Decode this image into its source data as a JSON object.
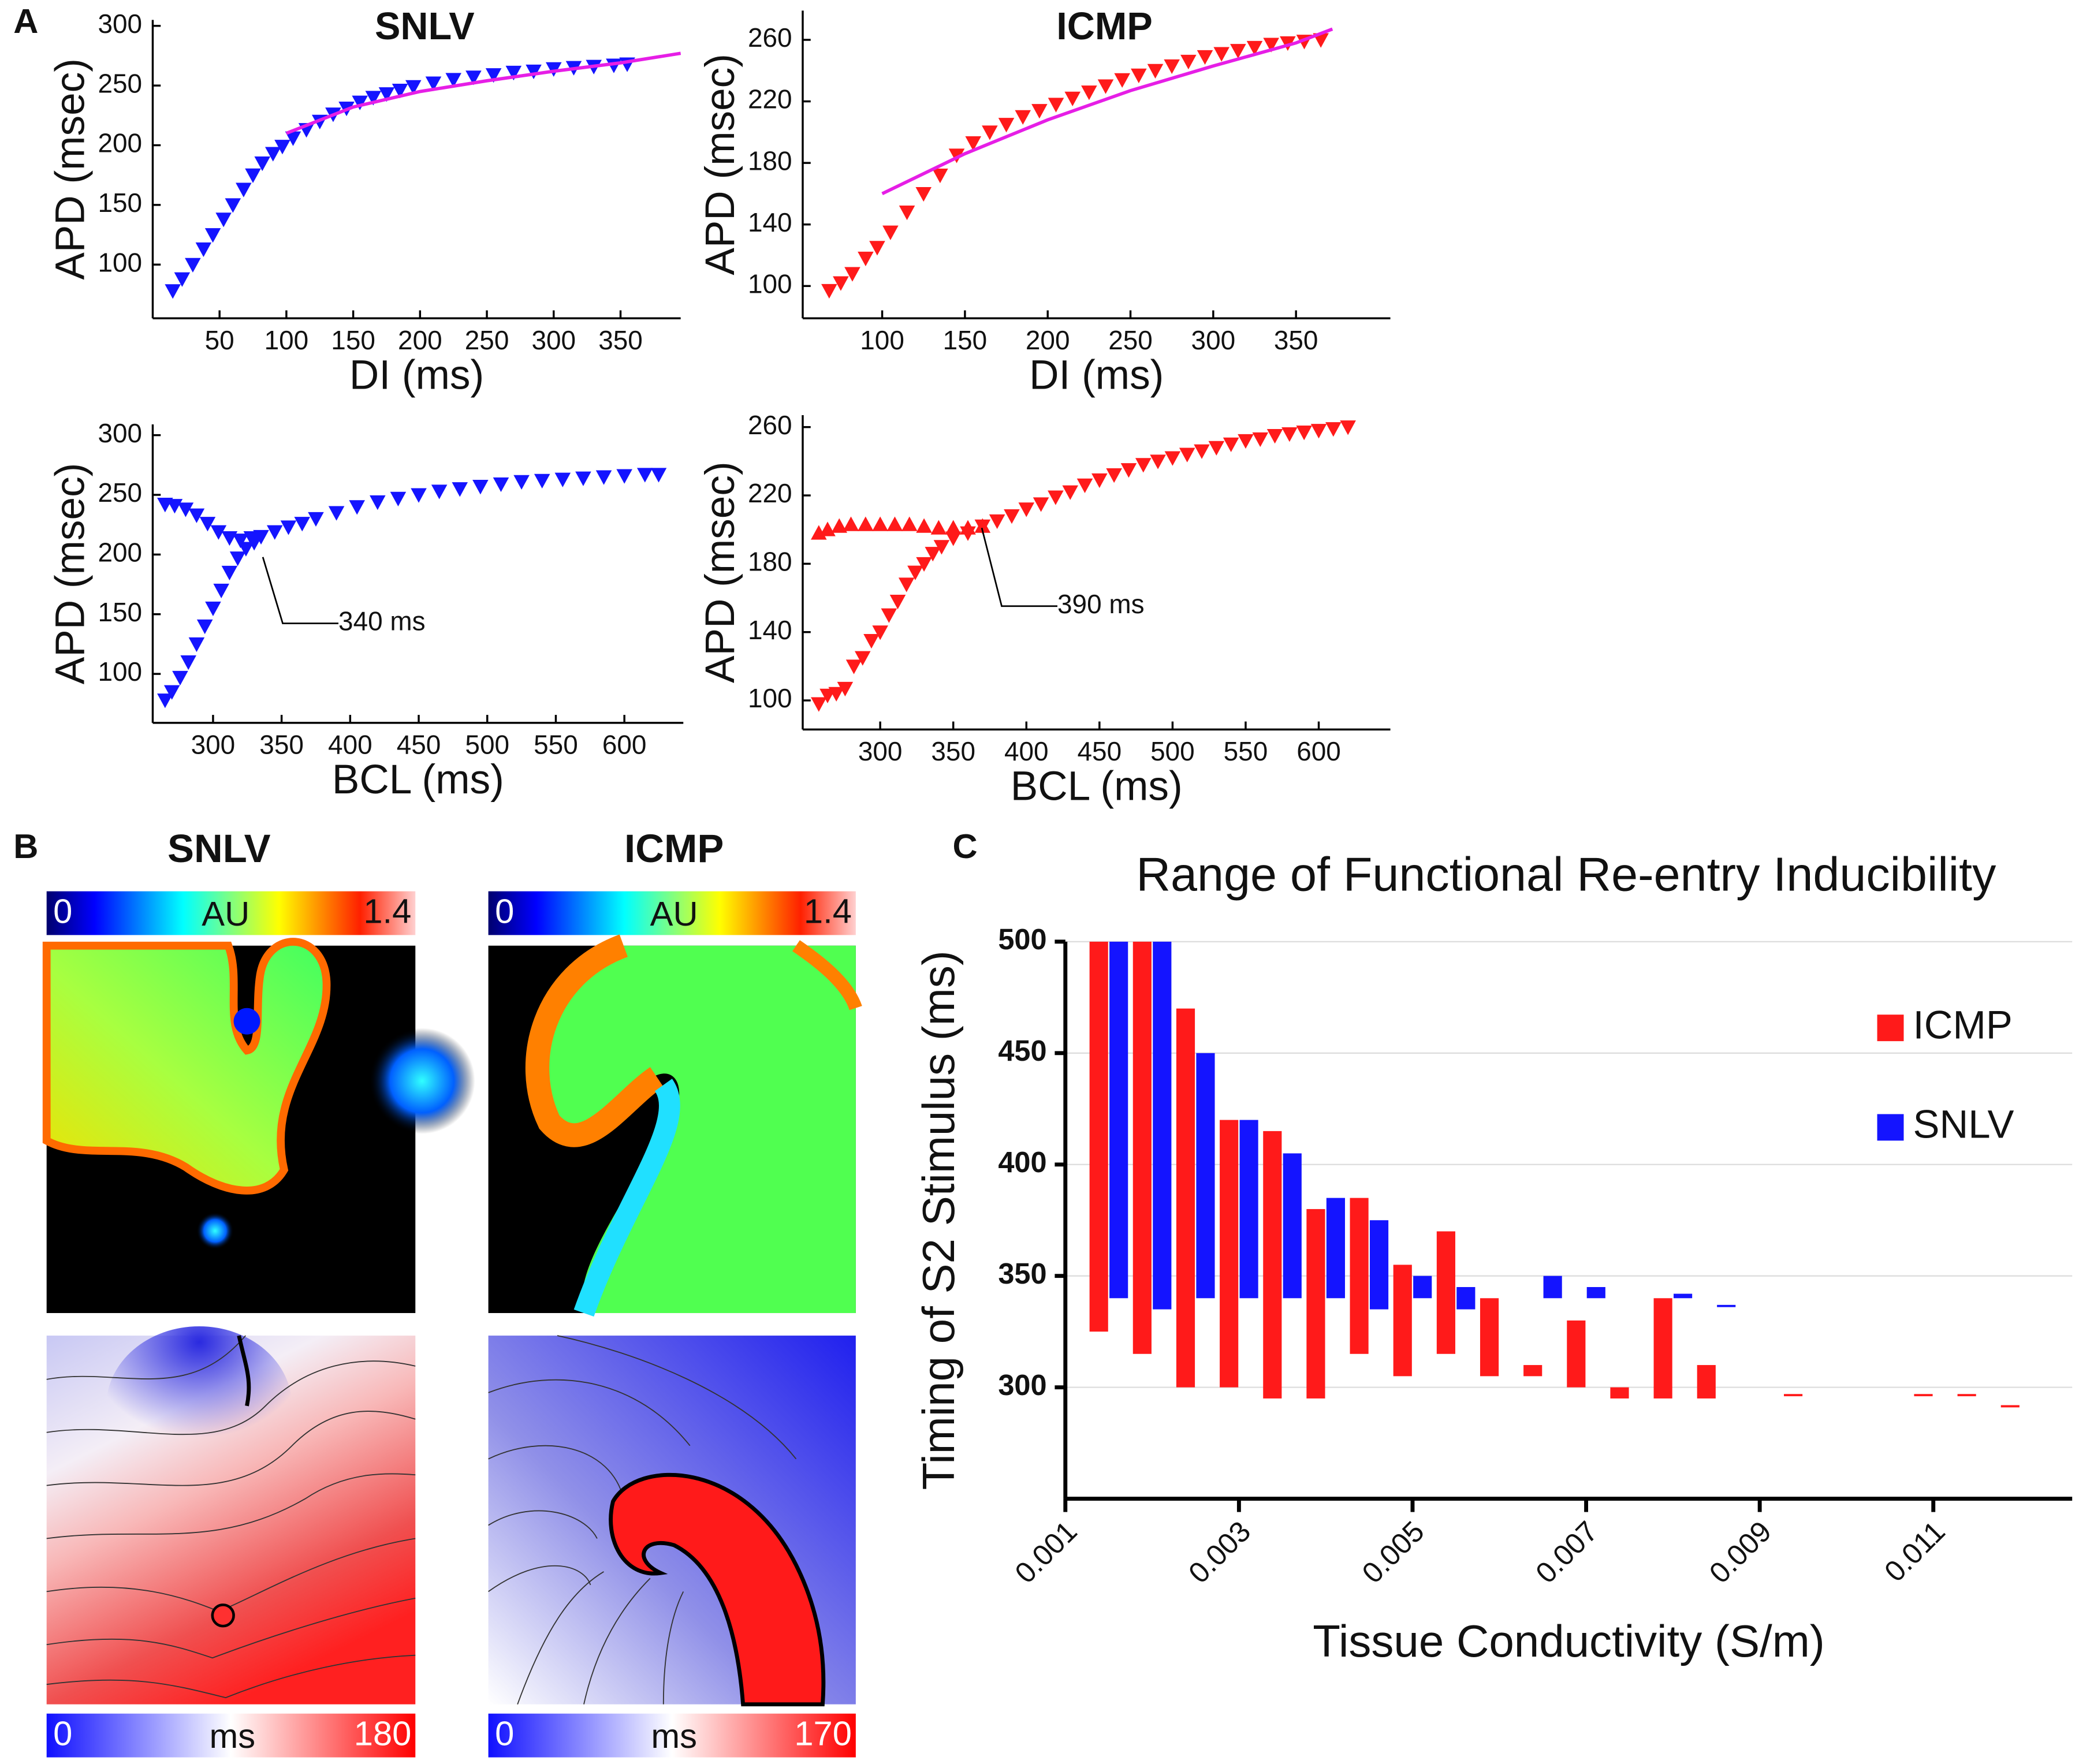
{
  "panel_labels": [
    "A",
    "B",
    "C"
  ],
  "chart_data": [
    {
      "type": "scatter",
      "title": "SNLV",
      "xlabel": "DI (ms)",
      "ylabel": "APD (msec)",
      "xlim": [
        0,
        395
      ],
      "ylim": [
        55,
        305
      ],
      "xticks": [
        50,
        100,
        150,
        200,
        250,
        300,
        350
      ],
      "yticks": [
        100,
        150,
        200,
        250,
        300
      ],
      "series": [
        {
          "color": "#1414ff",
          "marker": "v",
          "x": [
            15,
            22,
            30,
            38,
            45,
            53,
            60,
            68,
            75,
            82,
            90,
            97,
            105,
            115,
            125,
            135,
            145,
            155,
            165,
            175,
            185,
            195,
            210,
            225,
            240,
            255,
            270,
            285,
            300,
            315,
            330,
            345,
            355
          ],
          "values": [
            78,
            88,
            100,
            113,
            125,
            138,
            150,
            163,
            175,
            185,
            193,
            199,
            206,
            213,
            220,
            226,
            231,
            236,
            240,
            243,
            246,
            249,
            252,
            255,
            257,
            259,
            261,
            262,
            264,
            265,
            266,
            267,
            268
          ]
        }
      ],
      "fit": {
        "color": "#e61ee6",
        "x": [
          100,
          150,
          200,
          250,
          300,
          350,
          395
        ],
        "values": [
          210,
          232,
          245,
          254,
          262,
          269,
          277
        ]
      }
    },
    {
      "type": "scatter",
      "title": "ICMP",
      "xlabel": "DI (ms)",
      "ylabel": "APD (msec)",
      "xlim": [
        52,
        407
      ],
      "ylim": [
        79,
        279
      ],
      "xticks": [
        100,
        150,
        200,
        250,
        300,
        350
      ],
      "yticks": [
        100,
        140,
        180,
        220,
        260
      ],
      "series": [
        {
          "color": "#ff1a1a",
          "marker": "v",
          "x": [
            68,
            75,
            82,
            90,
            97,
            105,
            115,
            125,
            135,
            145,
            155,
            165,
            175,
            185,
            195,
            205,
            215,
            225,
            235,
            245,
            255,
            265,
            275,
            285,
            295,
            305,
            315,
            325,
            335,
            345,
            355,
            365
          ],
          "values": [
            97,
            102,
            108,
            118,
            125,
            135,
            148,
            160,
            172,
            185,
            193,
            200,
            205,
            210,
            214,
            218,
            222,
            226,
            230,
            234,
            237,
            240,
            243,
            246,
            249,
            251,
            253,
            255,
            257,
            258,
            259,
            260
          ]
        }
      ],
      "fit": {
        "color": "#e61ee6",
        "x": [
          100,
          150,
          200,
          250,
          300,
          350,
          372
        ],
        "values": [
          160,
          186,
          208,
          227,
          243,
          258,
          267
        ]
      }
    },
    {
      "type": "scatter",
      "xlabel": "BCL (ms)",
      "ylabel": "APD (msec)",
      "xlim": [
        256,
        643
      ],
      "ylim": [
        59,
        309
      ],
      "xticks": [
        300,
        350,
        400,
        450,
        500,
        550,
        600
      ],
      "yticks": [
        100,
        150,
        200,
        250,
        300
      ],
      "series": [
        {
          "color": "#1414ff",
          "marker": "v",
          "x": [
            265,
            270,
            276,
            282,
            288,
            294,
            300,
            306,
            312,
            318,
            324,
            330,
            335,
            345,
            355,
            365,
            375,
            390,
            405,
            420,
            435,
            450,
            465,
            480,
            495,
            510,
            525,
            540,
            555,
            570,
            585,
            600,
            615,
            625
          ],
          "values": [
            78,
            85,
            97,
            110,
            125,
            140,
            155,
            170,
            185,
            197,
            205,
            210,
            215,
            219,
            223,
            226,
            230,
            235,
            240,
            244,
            247,
            250,
            253,
            255,
            257,
            259,
            261,
            262,
            263,
            264,
            265,
            266,
            267,
            267
          ]
        },
        {
          "color": "#1414ff",
          "marker": "v",
          "x": [
            265,
            272,
            280,
            288,
            296,
            304,
            312,
            320,
            328
          ],
          "values": [
            242,
            241,
            238,
            233,
            226,
            219,
            214,
            212,
            214
          ]
        }
      ],
      "annotations": [
        {
          "text": "340 ms"
        }
      ]
    },
    {
      "type": "scatter",
      "xlabel": "BCL (ms)",
      "ylabel": "APD (msec)",
      "xlim": [
        247,
        649
      ],
      "ylim": [
        83,
        267
      ],
      "xticks": [
        300,
        350,
        400,
        450,
        500,
        550,
        600
      ],
      "yticks": [
        100,
        140,
        180,
        220,
        260
      ],
      "series": [
        {
          "color": "#ff1a1a",
          "marker": "v",
          "x": [
            258,
            264,
            270,
            276,
            282,
            288,
            294,
            300,
            306,
            312,
            318,
            324,
            330,
            336,
            342,
            350,
            360,
            370,
            380,
            390,
            400,
            410,
            420,
            430,
            440,
            450,
            460,
            470,
            480,
            490,
            500,
            510,
            520,
            530,
            540,
            550,
            560,
            570,
            580,
            590,
            600,
            610,
            620
          ],
          "values": [
            98,
            103,
            104,
            107,
            120,
            125,
            135,
            140,
            150,
            158,
            168,
            175,
            180,
            186,
            190,
            195,
            198,
            202,
            205,
            208,
            212,
            215,
            219,
            222,
            226,
            229,
            232,
            235,
            238,
            240,
            242,
            244,
            246,
            248,
            250,
            252,
            253,
            255,
            256,
            257,
            258,
            259,
            260
          ]
        },
        {
          "color": "#ff1a1a",
          "marker": "^",
          "x": [
            258,
            264,
            272,
            280,
            290,
            300,
            310,
            320,
            330,
            340,
            350,
            360,
            370
          ],
          "values": [
            198,
            200,
            202,
            203,
            203,
            203,
            203,
            203,
            202,
            201,
            201,
            201,
            202
          ]
        }
      ],
      "annotations": [
        {
          "text": "390 ms"
        }
      ]
    },
    {
      "type": "bar",
      "title": "Range of Functional Re-entry Inducibility",
      "xlabel": "Tissue Conductivity (S/m)",
      "ylabel": "Timing of S2 Stimulus (ms)",
      "xlim": [
        0.001,
        0.0126
      ],
      "ylim": [
        250,
        500
      ],
      "xticks": [
        0.001,
        0.003,
        0.005,
        0.007,
        0.009,
        0.011
      ],
      "yticks": [
        300,
        350,
        400,
        450,
        500
      ],
      "grid": true,
      "legend": "upper right",
      "x": [
        0.0015,
        0.002,
        0.0025,
        0.003,
        0.0035,
        0.004,
        0.0045,
        0.005,
        0.0055,
        0.006,
        0.0065,
        0.007,
        0.0075,
        0.008,
        0.0085,
        0.0095,
        0.011,
        0.0115,
        0.012
      ],
      "series": [
        {
          "name": "ICMP",
          "color": "#ff1a1a",
          "values": [
            [
              325,
              500
            ],
            [
              315,
              500
            ],
            [
              300,
              470
            ],
            [
              300,
              420
            ],
            [
              295,
              415
            ],
            [
              295,
              380
            ],
            [
              315,
              385
            ],
            [
              305,
              355
            ],
            [
              315,
              370
            ],
            [
              305,
              340
            ],
            [
              305,
              310
            ],
            [
              300,
              330
            ],
            [
              295,
              300
            ],
            [
              295,
              340
            ],
            [
              295,
              310
            ],
            [
              296,
              297
            ],
            [
              296,
              297
            ],
            [
              296,
              297
            ],
            [
              291,
              292
            ]
          ]
        },
        {
          "name": "SNLV",
          "color": "#1414ff",
          "values": [
            [
              340,
              500
            ],
            [
              335,
              500
            ],
            [
              340,
              450
            ],
            [
              340,
              420
            ],
            [
              340,
              405
            ],
            [
              340,
              385
            ],
            [
              335,
              375
            ],
            [
              340,
              350
            ],
            [
              335,
              345
            ],
            null,
            [
              340,
              350
            ],
            [
              340,
              345
            ],
            null,
            [
              340,
              342
            ],
            [
              336,
              337
            ],
            null,
            null,
            null,
            null
          ]
        }
      ]
    }
  ],
  "panel_b": {
    "maps": [
      {
        "title": "SNLV",
        "activation_bar": {
          "min": "0",
          "label": "AU",
          "max": "1.4"
        },
        "time_bar": {
          "min": "0",
          "label": "ms",
          "max": "180"
        }
      },
      {
        "title": "ICMP",
        "activation_bar": {
          "min": "0",
          "label": "AU",
          "max": "1.4"
        },
        "time_bar": {
          "min": "0",
          "label": "ms",
          "max": "170"
        }
      }
    ]
  }
}
